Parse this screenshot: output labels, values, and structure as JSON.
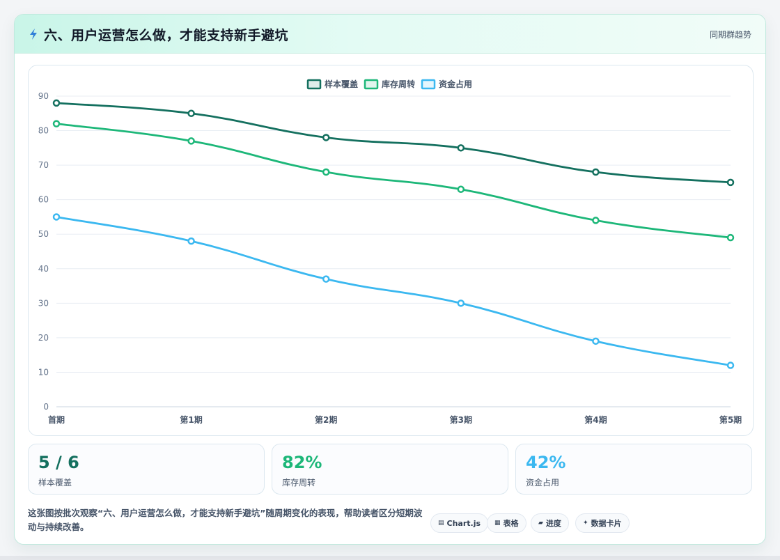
{
  "header": {
    "title": "六、用户运营怎么做，才能支持新手避坑",
    "link": "同期群趋势"
  },
  "colors": {
    "series1": "#14705f",
    "series2": "#1db779",
    "series3": "#3bb8f0"
  },
  "chart_data": {
    "type": "line",
    "categories": [
      "首期",
      "第1期",
      "第2期",
      "第3期",
      "第4期",
      "第5期"
    ],
    "ylim": [
      0,
      90
    ],
    "yticks": [
      0,
      10,
      20,
      30,
      40,
      50,
      60,
      70,
      80,
      90
    ],
    "grid": true,
    "legend_position": "top-center",
    "series": [
      {
        "name": "样本覆盖",
        "values": [
          88,
          85,
          78,
          75,
          68,
          65
        ]
      },
      {
        "name": "库存周转",
        "values": [
          82,
          77,
          68,
          63,
          54,
          49
        ]
      },
      {
        "name": "资金占用",
        "values": [
          55,
          48,
          37,
          30,
          19,
          12
        ]
      }
    ]
  },
  "stats": [
    {
      "value": "5 / 6",
      "label": "样本覆盖"
    },
    {
      "value": "82%",
      "label": "库存周转"
    },
    {
      "value": "42%",
      "label": "资金占用"
    }
  ],
  "description": "这张图按批次观察“六、用户运营怎么做，才能支持新手避坑”随周期变化的表现，帮助读者区分短期波动与持续改善。",
  "tags": [
    {
      "icon": "chart-icon",
      "label": "Chart.js"
    },
    {
      "icon": "table-icon",
      "label": "表格"
    },
    {
      "icon": "progress-icon",
      "label": "进度"
    },
    {
      "icon": "card-icon",
      "label": "数据卡片"
    }
  ]
}
